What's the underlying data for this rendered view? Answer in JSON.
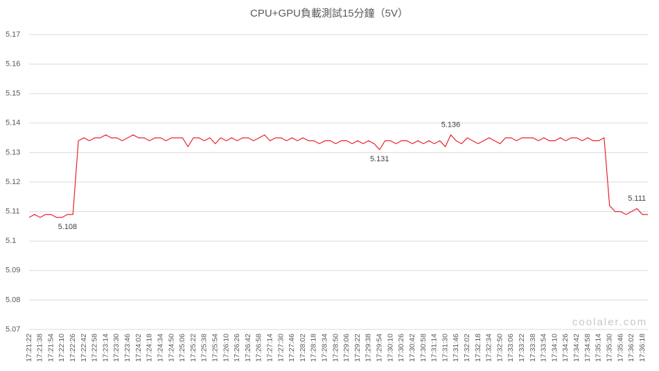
{
  "chart_data": {
    "type": "line",
    "title": "CPU+GPU負載測試15分鐘（5V）",
    "watermark": "coolaler.com",
    "categories": [
      "17:21:22",
      null,
      "17:21:38",
      null,
      "17:21:54",
      null,
      "17:22:10",
      null,
      "17:22:26",
      null,
      "17:22:42",
      null,
      "17:22:58",
      null,
      "17:23:14",
      null,
      "17:23:30",
      null,
      "17:23:46",
      null,
      "17:24:02",
      null,
      "17:24:18",
      null,
      "17:24:34",
      null,
      "17:24:50",
      null,
      "17:25:06",
      null,
      "17:25:22",
      null,
      "17:25:38",
      null,
      "17:25:54",
      null,
      "17:26:10",
      null,
      "17:26:26",
      null,
      "17:26:42",
      null,
      "17:26:58",
      null,
      "17:27:14",
      null,
      "17:27:30",
      null,
      "17:27:46",
      null,
      "17:28:02",
      null,
      "17:28:18",
      null,
      "17:28:34",
      null,
      "17:28:50",
      null,
      "17:29:06",
      null,
      "17:29:22",
      null,
      "17:29:38",
      null,
      "17:29:54",
      null,
      "17:30:10",
      null,
      "17:30:26",
      null,
      "17:30:42",
      null,
      "17:30:58",
      null,
      "17:31:14",
      null,
      "17:31:30",
      null,
      "17:31:46",
      null,
      "17:32:02",
      null,
      "17:32:18",
      null,
      "17:32:34",
      null,
      "17:32:50",
      null,
      "17:33:06",
      null,
      "17:33:22",
      null,
      "17:33:38",
      null,
      "17:33:54",
      null,
      "17:34:10",
      null,
      "17:34:26",
      null,
      "17:34:42",
      null,
      "17:34:58",
      null,
      "17:35:14",
      null,
      "17:35:30",
      null,
      "17:35:46",
      null,
      "17:36:02",
      null,
      "17:36:18",
      null
    ],
    "series": [
      {
        "name": "5V",
        "color": "#e8202a",
        "values": [
          5.108,
          5.109,
          5.108,
          5.109,
          5.109,
          5.108,
          5.108,
          5.109,
          5.109,
          5.134,
          5.135,
          5.134,
          5.135,
          5.135,
          5.136,
          5.135,
          5.135,
          5.134,
          5.135,
          5.136,
          5.135,
          5.135,
          5.134,
          5.135,
          5.135,
          5.134,
          5.135,
          5.135,
          5.135,
          5.132,
          5.135,
          5.135,
          5.134,
          5.135,
          5.133,
          5.135,
          5.134,
          5.135,
          5.134,
          5.135,
          5.135,
          5.134,
          5.135,
          5.136,
          5.134,
          5.135,
          5.135,
          5.134,
          5.135,
          5.134,
          5.135,
          5.134,
          5.134,
          5.133,
          5.134,
          5.134,
          5.133,
          5.134,
          5.134,
          5.133,
          5.134,
          5.133,
          5.134,
          5.133,
          5.131,
          5.134,
          5.134,
          5.133,
          5.134,
          5.134,
          5.133,
          5.134,
          5.133,
          5.134,
          5.133,
          5.134,
          5.132,
          5.136,
          5.134,
          5.133,
          5.135,
          5.134,
          5.133,
          5.134,
          5.135,
          5.134,
          5.133,
          5.135,
          5.135,
          5.134,
          5.135,
          5.135,
          5.135,
          5.134,
          5.135,
          5.134,
          5.134,
          5.135,
          5.134,
          5.135,
          5.135,
          5.134,
          5.135,
          5.134,
          5.134,
          5.135,
          5.112,
          5.11,
          5.11,
          5.109,
          5.11,
          5.111,
          5.109,
          5.109
        ],
        "value_labels": [
          null,
          null,
          null,
          null,
          null,
          null,
          "5.108",
          null,
          null,
          null,
          null,
          null,
          null,
          null,
          null,
          null,
          null,
          null,
          null,
          null,
          null,
          null,
          null,
          null,
          null,
          null,
          null,
          null,
          null,
          null,
          null,
          null,
          null,
          null,
          null,
          null,
          null,
          null,
          null,
          null,
          null,
          null,
          null,
          null,
          null,
          null,
          null,
          null,
          null,
          null,
          null,
          null,
          null,
          null,
          null,
          null,
          null,
          null,
          null,
          null,
          null,
          null,
          null,
          null,
          "5.131",
          null,
          null,
          null,
          null,
          null,
          null,
          null,
          null,
          null,
          null,
          null,
          null,
          "5.136",
          null,
          null,
          null,
          null,
          null,
          null,
          null,
          null,
          null,
          null,
          null,
          null,
          null,
          null,
          null,
          null,
          null,
          null,
          null,
          null,
          null,
          null,
          null,
          null,
          null,
          null,
          null,
          null,
          null,
          null,
          null,
          null,
          null,
          "5.111",
          null,
          null
        ]
      }
    ],
    "ylim": [
      5.07,
      5.17
    ],
    "yticks": [
      5.07,
      5.08,
      5.09,
      5.1,
      5.11,
      5.12,
      5.13,
      5.14,
      5.15,
      5.16,
      5.17
    ],
    "grid": true
  }
}
